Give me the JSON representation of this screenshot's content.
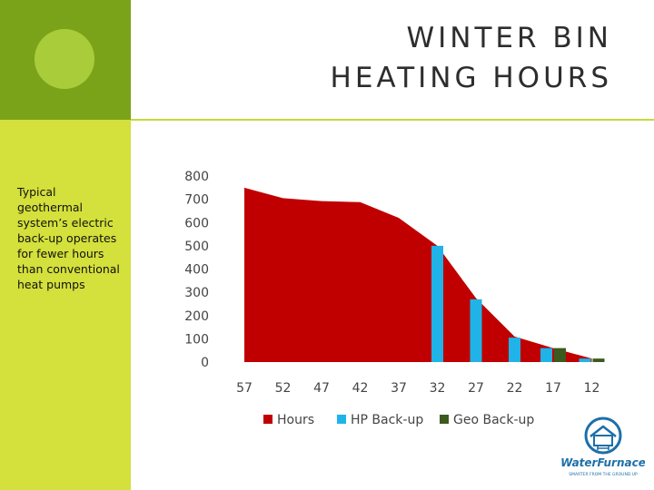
{
  "slide": {
    "title_line1": "WINTER BIN",
    "title_line2": "HEATING HOURS",
    "side_text": "Typical geothermal system’s electric back-up operates for fewer hours than conventional heat pumps",
    "logo_text": "WaterFurnace",
    "logo_tagline": "SMARTER FROM THE GROUND UP",
    "logo_icon": "house-ground-loop-icon"
  },
  "colors": {
    "left_band": "#d4e03b",
    "corner_block": "#7ba31a",
    "circle": "#a9cc3b",
    "hours": "#c00000",
    "hp_backup": "#1fb3e8",
    "geo_backup": "#3b5a1e",
    "logo": "#1e6fa8"
  },
  "chart_data": {
    "type": "bar",
    "title": "",
    "xlabel": "",
    "ylabel": "",
    "ylim": [
      0,
      800
    ],
    "yticks": [
      0,
      100,
      200,
      300,
      400,
      500,
      600,
      700,
      800
    ],
    "categories": [
      "57",
      "52",
      "47",
      "42",
      "37",
      "32",
      "27",
      "22",
      "17",
      "12"
    ],
    "legend_position": "bottom",
    "grid": false,
    "area_series": {
      "name": "Hours",
      "type": "area",
      "points": [
        {
          "x": "57",
          "y": 750
        },
        {
          "x": "52",
          "y": 705
        },
        {
          "x": "47",
          "y": 692
        },
        {
          "x": "42",
          "y": 688
        },
        {
          "x": "37",
          "y": 620
        },
        {
          "x": "32",
          "y": 500
        },
        {
          "x": "27",
          "y": 275
        },
        {
          "x": "22",
          "y": 110
        },
        {
          "x": "17",
          "y": 60
        },
        {
          "x": "12",
          "y": 15
        }
      ]
    },
    "series": [
      {
        "name": "HP Back-up",
        "values": [
          0,
          0,
          0,
          0,
          0,
          500,
          270,
          105,
          60,
          15
        ]
      },
      {
        "name": "Geo Back-up",
        "values": [
          0,
          0,
          0,
          0,
          0,
          0,
          0,
          0,
          60,
          15
        ]
      }
    ]
  }
}
